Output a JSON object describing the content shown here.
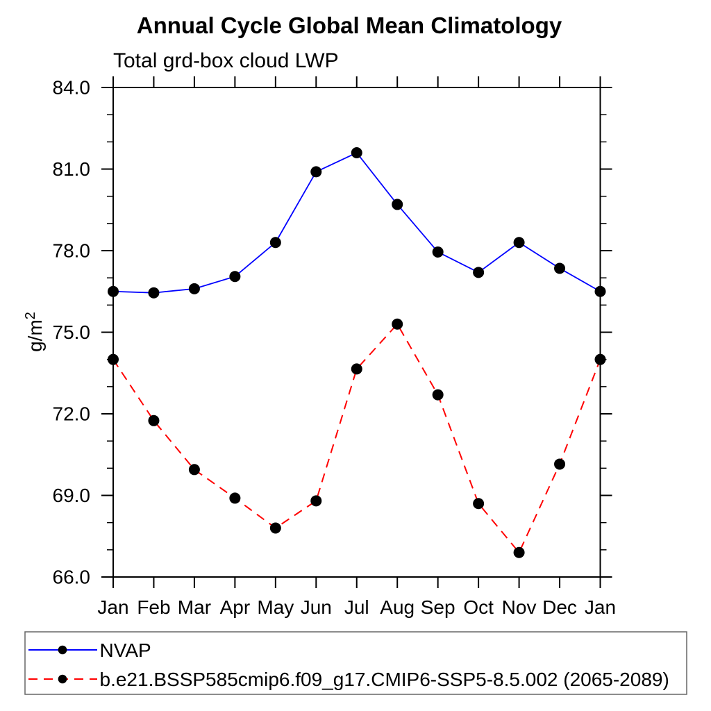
{
  "chart": {
    "title": "Annual Cycle Global Mean Climatology",
    "subtitle": "Total grd-box cloud LWP",
    "y_unit_base": "g/m",
    "y_unit_sup": "2"
  },
  "chart_data": {
    "type": "line",
    "title": "Annual Cycle Global Mean Climatology",
    "subtitle": "Total grd-box cloud LWP",
    "ylabel": "g/m2",
    "x_categories": [
      "Jan",
      "Feb",
      "Mar",
      "Apr",
      "May",
      "Jun",
      "Jul",
      "Aug",
      "Sep",
      "Oct",
      "Nov",
      "Dec",
      "Jan"
    ],
    "ylim": [
      66.0,
      84.0
    ],
    "ytick_major": [
      66,
      69,
      72,
      75,
      78,
      81,
      84
    ],
    "ytick_labels": [
      "66.0",
      "69.0",
      "72.0",
      "75.0",
      "78.0",
      "81.0",
      "84.0"
    ],
    "ytick_minor_step": 1,
    "grid": false,
    "legend_position": "bottom-left-box",
    "series": [
      {
        "name": "NVAP",
        "color": "#0000ff",
        "line_style": "solid",
        "marker": "filled-circle",
        "marker_color": "#000000",
        "values": [
          76.5,
          76.45,
          76.6,
          77.05,
          78.3,
          80.9,
          81.6,
          79.7,
          77.95,
          77.2,
          78.3,
          77.35,
          76.5
        ]
      },
      {
        "name": "b.e21.BSSP585cmip6.f09_g17.CMIP6-SSP5-8.5.002 (2065-2089)",
        "color": "#ff0000",
        "line_style": "dashed",
        "marker": "filled-circle",
        "marker_color": "#000000",
        "values": [
          74.0,
          71.75,
          69.95,
          68.9,
          67.8,
          68.8,
          73.65,
          75.3,
          72.7,
          68.7,
          66.9,
          70.15,
          74.0
        ]
      }
    ]
  }
}
